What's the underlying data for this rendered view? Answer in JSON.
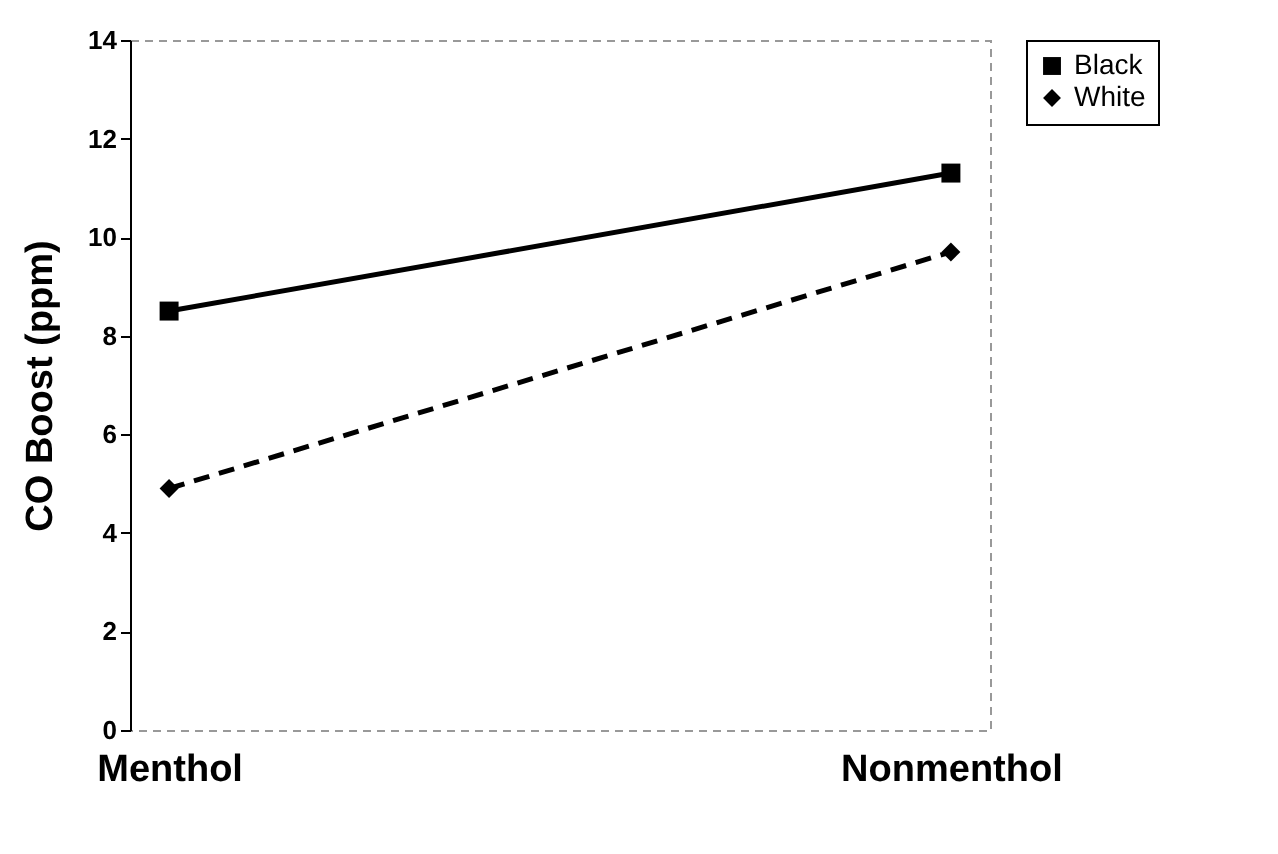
{
  "chart_data": {
    "type": "line",
    "ylabel": "CO Boost (ppm)",
    "categories": [
      "Menthol",
      "Nonmenthol"
    ],
    "ylim": [
      0,
      14
    ],
    "yticks": [
      0,
      2,
      4,
      6,
      8,
      10,
      12,
      14
    ],
    "grid": false,
    "legend": "right",
    "series": [
      {
        "name": "Black",
        "color": "#000000",
        "marker": "square",
        "line_style": "solid",
        "values": [
          8.5,
          11.3
        ]
      },
      {
        "name": "White",
        "color": "#000000",
        "marker": "diamond",
        "line_style": "dashed",
        "values": [
          4.9,
          9.7
        ]
      }
    ]
  }
}
